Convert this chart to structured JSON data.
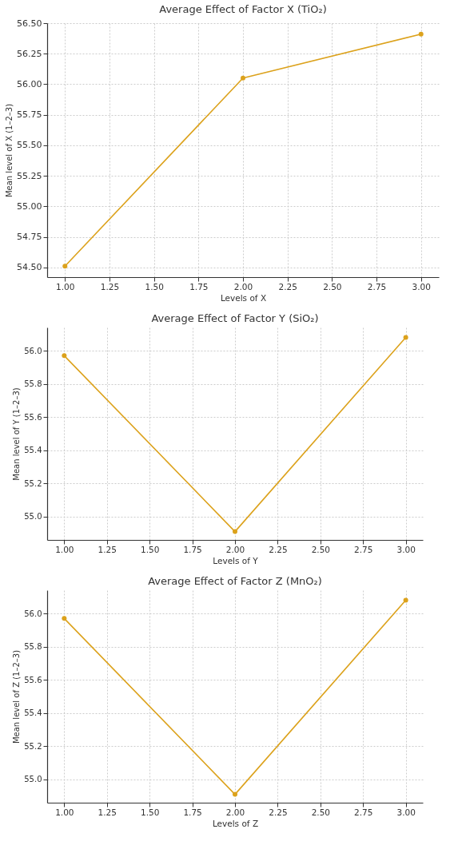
{
  "chart_data": [
    {
      "type": "line",
      "title": "Average Effect of Factor X (TiO₂)",
      "xlabel": "Levels of X",
      "ylabel": "Mean level of X (1–2–3)",
      "x": [
        1,
        2,
        3
      ],
      "series": [
        {
          "color": "#dca21c",
          "values": [
            54.51,
            56.05,
            56.41
          ]
        }
      ],
      "xlim": [
        0.9,
        3.1
      ],
      "xticks": [
        {
          "value": 1,
          "label": "1.00"
        },
        {
          "value": 1.25,
          "label": "1.25"
        },
        {
          "value": 1.5,
          "label": "1.50"
        },
        {
          "value": 1.75,
          "label": "1.75"
        },
        {
          "value": 2,
          "label": "2.00"
        },
        {
          "value": 2.25,
          "label": "2.25"
        },
        {
          "value": 2.5,
          "label": "2.50"
        },
        {
          "value": 2.75,
          "label": "2.75"
        },
        {
          "value": 3,
          "label": "3.00"
        }
      ],
      "ylim": [
        54.42,
        56.5
      ],
      "yticks": [
        {
          "value": 54.5,
          "label": "54.50"
        },
        54.75,
        {
          "value": 55,
          "label": "55.00"
        },
        55.25,
        {
          "value": 55.5,
          "label": "55.50"
        },
        55.75,
        {
          "value": 56,
          "label": "56.00"
        },
        56.25,
        {
          "value": 56.5,
          "label": "56.50"
        }
      ],
      "grid": true,
      "marker": "circle"
    },
    {
      "type": "line",
      "title": "Average Effect of Factor Y (SiO₂)",
      "xlabel": "Levels of Y",
      "ylabel": "Mean level of Y (1–2–3)",
      "x": [
        1,
        2,
        3
      ],
      "series": [
        {
          "color": "#dca21c",
          "values": [
            55.97,
            54.91,
            56.08
          ]
        }
      ],
      "xlim": [
        0.9,
        3.1
      ],
      "xticks": [
        {
          "value": 1,
          "label": "1.00"
        },
        {
          "value": 1.25,
          "label": "1.25"
        },
        {
          "value": 1.5,
          "label": "1.50"
        },
        {
          "value": 1.75,
          "label": "1.75"
        },
        {
          "value": 2,
          "label": "2.00"
        },
        {
          "value": 2.25,
          "label": "2.25"
        },
        {
          "value": 2.5,
          "label": "2.50"
        },
        {
          "value": 2.75,
          "label": "2.75"
        },
        {
          "value": 3,
          "label": "3.00"
        }
      ],
      "ylim": [
        54.86,
        56.14
      ],
      "yticks": [
        {
          "value": 55,
          "label": "55.0"
        },
        55.2,
        55.4,
        55.6,
        55.8,
        {
          "value": 56,
          "label": "56.0"
        }
      ],
      "grid": true,
      "marker": "circle"
    },
    {
      "type": "line",
      "title": "Average Effect of Factor Z (MnO₂)",
      "xlabel": "Levels of Z",
      "ylabel": "Mean level of Z (1–2–3)",
      "x": [
        1,
        2,
        3
      ],
      "series": [
        {
          "color": "#dca21c",
          "values": [
            55.97,
            54.91,
            56.08
          ]
        }
      ],
      "xlim": [
        0.9,
        3.1
      ],
      "xticks": [
        {
          "value": 1,
          "label": "1.00"
        },
        {
          "value": 1.25,
          "label": "1.25"
        },
        {
          "value": 1.5,
          "label": "1.50"
        },
        {
          "value": 1.75,
          "label": "1.75"
        },
        {
          "value": 2,
          "label": "2.00"
        },
        {
          "value": 2.25,
          "label": "2.25"
        },
        {
          "value": 2.5,
          "label": "2.50"
        },
        {
          "value": 2.75,
          "label": "2.75"
        },
        {
          "value": 3,
          "label": "3.00"
        }
      ],
      "ylim": [
        54.86,
        56.14
      ],
      "yticks": [
        {
          "value": 55,
          "label": "55.0"
        },
        55.2,
        55.4,
        55.6,
        55.8,
        {
          "value": 56,
          "label": "56.0"
        }
      ],
      "grid": true,
      "marker": "circle"
    }
  ]
}
